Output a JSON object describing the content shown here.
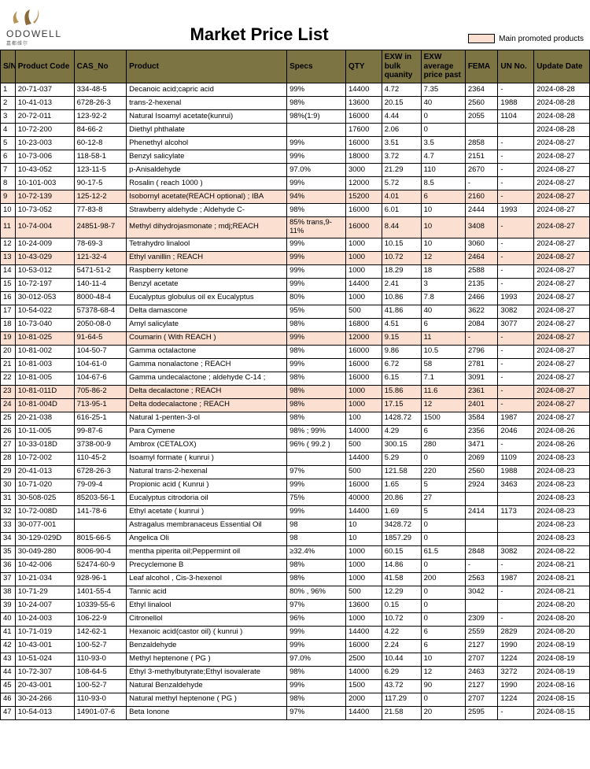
{
  "brand": {
    "name": "ODOWELL",
    "sub": "嘉都维尔"
  },
  "title": "Market Price List",
  "legend": "Main promoted products",
  "colors": {
    "header_bg": "#7d7443",
    "promoted_bg": "#fbe0d2",
    "border": "#000000",
    "page_bg": "#ffffff"
  },
  "columns": [
    "S/N",
    "Product Code",
    "CAS_No",
    "Product",
    "Specs",
    "QTY",
    "EXW in bulk quanity",
    "EXW average price past",
    "FEMA",
    "UN No.",
    "Update Date"
  ],
  "rows": [
    {
      "sn": "1",
      "code": "20-71-037",
      "cas": "334-48-5",
      "prod": "Decanoic acid;capric acid",
      "spec": "99%",
      "qty": "14400",
      "bulk": "4.72",
      "avg": "7.35",
      "fema": "2364",
      "un": "-",
      "date": "2024-08-28"
    },
    {
      "sn": "2",
      "code": "10-41-013",
      "cas": "6728-26-3",
      "prod": "trans-2-hexenal",
      "spec": "98%",
      "qty": "13600",
      "bulk": "20.15",
      "avg": "40",
      "fema": "2560",
      "un": "1988",
      "date": "2024-08-28"
    },
    {
      "sn": "3",
      "code": "20-72-011",
      "cas": "123-92-2",
      "prod": "Natural Isoamyl acetate(kunrui)",
      "spec": "98%(1:9)",
      "qty": "16000",
      "bulk": "4.44",
      "avg": "0",
      "fema": "2055",
      "un": "1104",
      "date": "2024-08-28"
    },
    {
      "sn": "4",
      "code": "10-72-200",
      "cas": "84-66-2",
      "prod": "Diethyl phthalate",
      "spec": "",
      "qty": "17600",
      "bulk": "2.06",
      "avg": "0",
      "fema": "",
      "un": "",
      "date": "2024-08-28"
    },
    {
      "sn": "5",
      "code": "10-23-003",
      "cas": "60-12-8",
      "prod": "Phenethyl alcohol",
      "spec": "99%",
      "qty": "16000",
      "bulk": "3.51",
      "avg": "3.5",
      "fema": "2858",
      "un": "-",
      "date": "2024-08-27"
    },
    {
      "sn": "6",
      "code": "10-73-006",
      "cas": "118-58-1",
      "prod": "Benzyl salicylate",
      "spec": "99%",
      "qty": "18000",
      "bulk": "3.72",
      "avg": "4.7",
      "fema": "2151",
      "un": "-",
      "date": "2024-08-27"
    },
    {
      "sn": "7",
      "code": "10-43-052",
      "cas": "123-11-5",
      "prod": "p-Anisaldehyde",
      "spec": "97.0%",
      "qty": "3000",
      "bulk": "21.29",
      "avg": "110",
      "fema": "2670",
      "un": "-",
      "date": "2024-08-27"
    },
    {
      "sn": "8",
      "code": "10-101-003",
      "cas": "90-17-5",
      "prod": "Rosalin ( reach 1000 )",
      "spec": "99%",
      "qty": "12000",
      "bulk": "5.72",
      "avg": "8.5",
      "fema": "-",
      "un": "-",
      "date": "2024-08-27"
    },
    {
      "sn": "9",
      "code": "10-72-139",
      "cas": "125-12-2",
      "prod": "Isobornyl acetate(REACH optional) ; IBA",
      "spec": "94%",
      "qty": "15200",
      "bulk": "4.01",
      "avg": "6",
      "fema": "2160",
      "un": "-",
      "date": "2024-08-27",
      "promoted": true
    },
    {
      "sn": "10",
      "code": "10-73-052",
      "cas": "77-83-8",
      "prod": "Strawberry aldehyde ; Aldehyde C-",
      "spec": "98%",
      "qty": "16000",
      "bulk": "6.01",
      "avg": "10",
      "fema": "2444",
      "un": "1993",
      "date": "2024-08-27"
    },
    {
      "sn": "11",
      "code": "10-74-004",
      "cas": "24851-98-7",
      "prod": "Methyl dihydrojasmonate ; mdj;REACH",
      "spec": "85% trans,9-11%",
      "qty": "16000",
      "bulk": "8.44",
      "avg": "10",
      "fema": "3408",
      "un": "-",
      "date": "2024-08-27",
      "promoted": true
    },
    {
      "sn": "12",
      "code": "10-24-009",
      "cas": "78-69-3",
      "prod": "Tetrahydro linalool",
      "spec": "99%",
      "qty": "1000",
      "bulk": "10.15",
      "avg": "10",
      "fema": "3060",
      "un": "-",
      "date": "2024-08-27"
    },
    {
      "sn": "13",
      "code": "10-43-029",
      "cas": "121-32-4",
      "prod": "Ethyl vanillin ; REACH",
      "spec": "99%",
      "qty": "1000",
      "bulk": "10.72",
      "avg": "12",
      "fema": "2464",
      "un": "-",
      "date": "2024-08-27",
      "promoted": true
    },
    {
      "sn": "14",
      "code": "10-53-012",
      "cas": "5471-51-2",
      "prod": "Raspberry ketone",
      "spec": "99%",
      "qty": "1000",
      "bulk": "18.29",
      "avg": "18",
      "fema": "2588",
      "un": "-",
      "date": "2024-08-27"
    },
    {
      "sn": "15",
      "code": "10-72-197",
      "cas": "140-11-4",
      "prod": "Benzyl acetate",
      "spec": "99%",
      "qty": "14400",
      "bulk": "2.41",
      "avg": "3",
      "fema": "2135",
      "un": "-",
      "date": "2024-08-27"
    },
    {
      "sn": "16",
      "code": "30-012-053",
      "cas": "8000-48-4",
      "prod": "Eucalyptus globulus oil ex Eucalyptus",
      "spec": "80%",
      "qty": "1000",
      "bulk": "10.86",
      "avg": "7.8",
      "fema": "2466",
      "un": "1993",
      "date": "2024-08-27"
    },
    {
      "sn": "17",
      "code": "10-54-022",
      "cas": "57378-68-4",
      "prod": "Delta damascone",
      "spec": "95%",
      "qty": "500",
      "bulk": "41.86",
      "avg": "40",
      "fema": "3622",
      "un": "3082",
      "date": "2024-08-27"
    },
    {
      "sn": "18",
      "code": "10-73-040",
      "cas": "2050-08-0",
      "prod": "Amyl salicylate",
      "spec": "98%",
      "qty": "16800",
      "bulk": "4.51",
      "avg": "6",
      "fema": "2084",
      "un": "3077",
      "date": "2024-08-27"
    },
    {
      "sn": "19",
      "code": "10-81-025",
      "cas": "91-64-5",
      "prod": "Coumarin ( With REACH )",
      "spec": "99%",
      "qty": "12000",
      "bulk": "9.15",
      "avg": "11",
      "fema": "-",
      "un": "-",
      "date": "2024-08-27",
      "promoted": true
    },
    {
      "sn": "20",
      "code": "10-81-002",
      "cas": "104-50-7",
      "prod": "Gamma octalactone",
      "spec": "98%",
      "qty": "16000",
      "bulk": "9.86",
      "avg": "10.5",
      "fema": "2796",
      "un": "-",
      "date": "2024-08-27"
    },
    {
      "sn": "21",
      "code": "10-81-003",
      "cas": "104-61-0",
      "prod": "Gamma nonalactone ; REACH",
      "spec": "99%",
      "qty": "16000",
      "bulk": "6.72",
      "avg": "58",
      "fema": "2781",
      "un": "-",
      "date": "2024-08-27"
    },
    {
      "sn": "22",
      "code": "10-81-005",
      "cas": "104-67-6",
      "prod": "Gamma undecalactone ; aldehyde C-14 ;",
      "spec": "98%",
      "qty": "16000",
      "bulk": "6.15",
      "avg": "7.1",
      "fema": "3091",
      "un": "-",
      "date": "2024-08-27"
    },
    {
      "sn": "23",
      "code": "10-81-011D",
      "cas": "705-86-2",
      "prod": "Delta decalactone ; REACH",
      "spec": "98%",
      "qty": "1000",
      "bulk": "15.86",
      "avg": "11.6",
      "fema": "2361",
      "un": "-",
      "date": "2024-08-27",
      "promoted": true
    },
    {
      "sn": "24",
      "code": "10-81-004D",
      "cas": "713-95-1",
      "prod": "Delta dodecalactone ; REACH",
      "spec": "98%",
      "qty": "1000",
      "bulk": "17.15",
      "avg": "12",
      "fema": "2401",
      "un": "-",
      "date": "2024-08-27",
      "promoted": true
    },
    {
      "sn": "25",
      "code": "20-21-038",
      "cas": "616-25-1",
      "prod": "Natural 1-penten-3-ol",
      "spec": "98%",
      "qty": "100",
      "bulk": "1428.72",
      "avg": "1500",
      "fema": "3584",
      "un": "1987",
      "date": "2024-08-27"
    },
    {
      "sn": "26",
      "code": "10-11-005",
      "cas": "99-87-6",
      "prod": "Para Cymene",
      "spec": "98% ; 99%",
      "qty": "14000",
      "bulk": "4.29",
      "avg": "6",
      "fema": "2356",
      "un": "2046",
      "date": "2024-08-26"
    },
    {
      "sn": "27",
      "code": "10-33-018D",
      "cas": "3738-00-9",
      "prod": "Ambrox (CETALOX)",
      "spec": "96% ( 99.2 )",
      "qty": "500",
      "bulk": "300.15",
      "avg": "280",
      "fema": "3471",
      "un": "-",
      "date": "2024-08-26"
    },
    {
      "sn": "28",
      "code": "10-72-002",
      "cas": "110-45-2",
      "prod": "Isoamyl formate ( kunrui )",
      "spec": "",
      "qty": "14400",
      "bulk": "5.29",
      "avg": "0",
      "fema": "2069",
      "un": "1109",
      "date": "2024-08-23"
    },
    {
      "sn": "29",
      "code": "20-41-013",
      "cas": "6728-26-3",
      "prod": "Natural trans-2-hexenal",
      "spec": "97%",
      "qty": "500",
      "bulk": "121.58",
      "avg": "220",
      "fema": "2560",
      "un": "1988",
      "date": "2024-08-23"
    },
    {
      "sn": "30",
      "code": "10-71-020",
      "cas": "79-09-4",
      "prod": "Propionic acid ( Kunrui )",
      "spec": "99%",
      "qty": "16000",
      "bulk": "1.65",
      "avg": "5",
      "fema": "2924",
      "un": "3463",
      "date": "2024-08-23"
    },
    {
      "sn": "31",
      "code": "30-508-025",
      "cas": "85203-56-1",
      "prod": "Eucalyptus citrodoria oil",
      "spec": "75%",
      "qty": "40000",
      "bulk": "20.86",
      "avg": "27",
      "fema": "",
      "un": "",
      "date": "2024-08-23"
    },
    {
      "sn": "32",
      "code": "10-72-008D",
      "cas": "141-78-6",
      "prod": "Ethyl acetate ( kunrui )",
      "spec": "99%",
      "qty": "14400",
      "bulk": "1.69",
      "avg": "5",
      "fema": "2414",
      "un": "1173",
      "date": "2024-08-23"
    },
    {
      "sn": "33",
      "code": "30-077-001",
      "cas": "",
      "prod": "Astragalus membranaceus Essential Oil",
      "spec": "98",
      "qty": "10",
      "bulk": "3428.72",
      "avg": "0",
      "fema": "",
      "un": "",
      "date": "2024-08-23"
    },
    {
      "sn": "34",
      "code": "30-129-029D",
      "cas": "8015-66-5",
      "prod": "Angelica Oli",
      "spec": "98",
      "qty": "10",
      "bulk": "1857.29",
      "avg": "0",
      "fema": "",
      "un": "",
      "date": "2024-08-23"
    },
    {
      "sn": "35",
      "code": "30-049-280",
      "cas": "8006-90-4",
      "prod": "mentha piperita oil;Peppermint oil",
      "spec": "≥32.4%",
      "qty": "1000",
      "bulk": "60.15",
      "avg": "61.5",
      "fema": "2848",
      "un": "3082",
      "date": "2024-08-22"
    },
    {
      "sn": "36",
      "code": "10-42-006",
      "cas": "52474-60-9",
      "prod": "Precyclemone B",
      "spec": "98%",
      "qty": "1000",
      "bulk": "14.86",
      "avg": "0",
      "fema": "-",
      "un": "-",
      "date": "2024-08-21"
    },
    {
      "sn": "37",
      "code": "10-21-034",
      "cas": "928-96-1",
      "prod": "Leaf alcohol , Cis-3-hexenol",
      "spec": "98%",
      "qty": "1000",
      "bulk": "41.58",
      "avg": "200",
      "fema": "2563",
      "un": "1987",
      "date": "2024-08-21"
    },
    {
      "sn": "38",
      "code": "10-71-29",
      "cas": "1401-55-4",
      "prod": "Tannic acid",
      "spec": "80% , 96%",
      "qty": "500",
      "bulk": "12.29",
      "avg": "0",
      "fema": "3042",
      "un": "-",
      "date": "2024-08-21"
    },
    {
      "sn": "39",
      "code": "10-24-007",
      "cas": "10339-55-6",
      "prod": "Ethyl linalool",
      "spec": "97%",
      "qty": "13600",
      "bulk": "0.15",
      "avg": "0",
      "fema": "",
      "un": "",
      "date": "2024-08-20"
    },
    {
      "sn": "40",
      "code": "10-24-003",
      "cas": "106-22-9",
      "prod": "Citronellol",
      "spec": "96%",
      "qty": "1000",
      "bulk": "10.72",
      "avg": "0",
      "fema": "2309",
      "un": "-",
      "date": "2024-08-20"
    },
    {
      "sn": "41",
      "code": "10-71-019",
      "cas": "142-62-1",
      "prod": "Hexanoic acid(castor oil) ( kunrui )",
      "spec": "99%",
      "qty": "14400",
      "bulk": "4.22",
      "avg": "6",
      "fema": "2559",
      "un": "2829",
      "date": "2024-08-20"
    },
    {
      "sn": "42",
      "code": "10-43-001",
      "cas": "100-52-7",
      "prod": "Benzaldehyde",
      "spec": "99%",
      "qty": "16000",
      "bulk": "2.24",
      "avg": "6",
      "fema": "2127",
      "un": "1990",
      "date": "2024-08-19"
    },
    {
      "sn": "43",
      "code": "10-51-024",
      "cas": "110-93-0",
      "prod": "Methyl heptenone ( PG )",
      "spec": "97.0%",
      "qty": "2500",
      "bulk": "10.44",
      "avg": "10",
      "fema": "2707",
      "un": "1224",
      "date": "2024-08-19"
    },
    {
      "sn": "44",
      "code": "10-72-307",
      "cas": "108-64-5",
      "prod": "Ethyl 3-methylbutyrate;Ethyl isovalerate",
      "spec": "98%",
      "qty": "14000",
      "bulk": "6.29",
      "avg": "12",
      "fema": "2463",
      "un": "3272",
      "date": "2024-08-19"
    },
    {
      "sn": "45",
      "code": "20-43-001",
      "cas": "100-52-7",
      "prod": "Natural Benzaldehyde",
      "spec": "99%",
      "qty": "1500",
      "bulk": "43.72",
      "avg": "90",
      "fema": "2127",
      "un": "1990",
      "date": "2024-08-16"
    },
    {
      "sn": "46",
      "code": "30-24-266",
      "cas": "110-93-0",
      "prod": "Natural methyl heptenone ( PG )",
      "spec": "98%",
      "qty": "2000",
      "bulk": "117.29",
      "avg": "0",
      "fema": "2707",
      "un": "1224",
      "date": "2024-08-15"
    },
    {
      "sn": "47",
      "code": "10-54-013",
      "cas": "14901-07-6",
      "prod": "Beta Ionone",
      "spec": "97%",
      "qty": "14400",
      "bulk": "21.58",
      "avg": "20",
      "fema": "2595",
      "un": "-",
      "date": "2024-08-15"
    }
  ]
}
